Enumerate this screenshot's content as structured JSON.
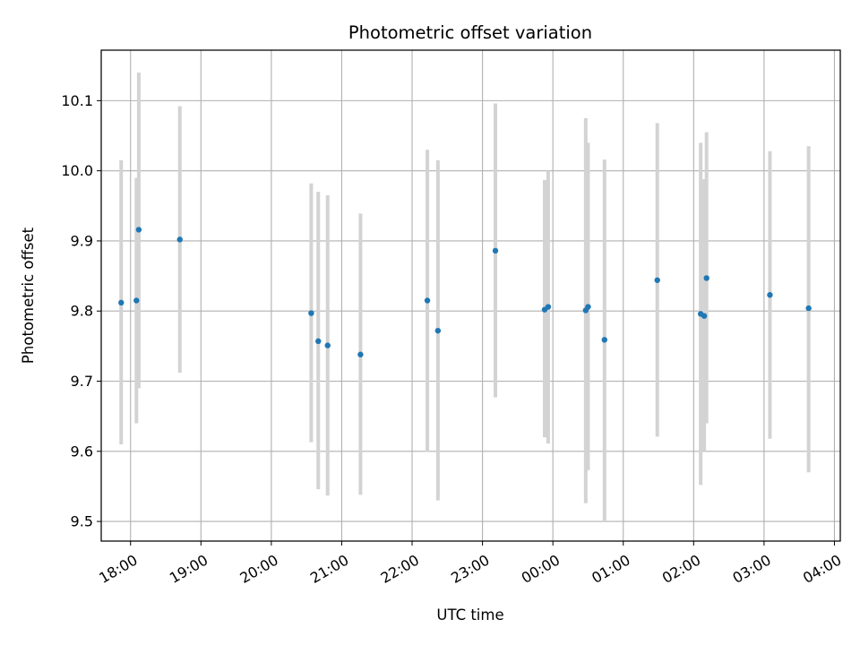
{
  "chart_data": {
    "type": "scatter",
    "title": "Photometric offset variation",
    "xlabel": "UTC time",
    "ylabel": "Photometric offset",
    "grid": true,
    "legend": "none",
    "colors": {
      "point": "#1f77b4",
      "errorbar": "#d3d3d3",
      "grid": "#b0b0b0"
    },
    "xlim": [
      "17:35",
      "04:05"
    ],
    "ylim": [
      9.472,
      10.172
    ],
    "x_ticks": [
      "18:00",
      "19:00",
      "20:00",
      "21:00",
      "22:00",
      "23:00",
      "00:00",
      "01:00",
      "02:00",
      "03:00",
      "04:00"
    ],
    "y_ticks": [
      "9.5",
      "9.6",
      "9.7",
      "9.8",
      "9.9",
      "10.0",
      "10.1"
    ],
    "points": [
      {
        "x": "17:52",
        "y": 9.812,
        "low": 9.61,
        "high": 10.015
      },
      {
        "x": "18:05",
        "y": 9.815,
        "low": 9.64,
        "high": 9.99
      },
      {
        "x": "18:07",
        "y": 9.916,
        "low": 9.69,
        "high": 10.14
      },
      {
        "x": "18:42",
        "y": 9.902,
        "low": 9.712,
        "high": 10.092
      },
      {
        "x": "20:34",
        "y": 9.797,
        "low": 9.613,
        "high": 9.982
      },
      {
        "x": "20:40",
        "y": 9.757,
        "low": 9.546,
        "high": 9.97
      },
      {
        "x": "20:48",
        "y": 9.751,
        "low": 9.537,
        "high": 9.965
      },
      {
        "x": "21:16",
        "y": 9.738,
        "low": 9.538,
        "high": 9.939
      },
      {
        "x": "22:13",
        "y": 9.815,
        "low": 9.599,
        "high": 10.03
      },
      {
        "x": "22:22",
        "y": 9.772,
        "low": 9.53,
        "high": 10.015
      },
      {
        "x": "23:11",
        "y": 9.886,
        "low": 9.677,
        "high": 10.096
      },
      {
        "x": "23:53",
        "y": 9.802,
        "low": 9.62,
        "high": 9.987
      },
      {
        "x": "23:56",
        "y": 9.806,
        "low": 9.611,
        "high": 10.0
      },
      {
        "x": "00:28",
        "y": 9.801,
        "low": 9.526,
        "high": 10.075
      },
      {
        "x": "00:30",
        "y": 9.806,
        "low": 9.573,
        "high": 10.04
      },
      {
        "x": "00:44",
        "y": 9.759,
        "low": 9.5,
        "high": 10.016
      },
      {
        "x": "01:29",
        "y": 9.844,
        "low": 9.621,
        "high": 10.068
      },
      {
        "x": "02:06",
        "y": 9.796,
        "low": 9.552,
        "high": 10.04
      },
      {
        "x": "02:09",
        "y": 9.793,
        "low": 9.6,
        "high": 9.988
      },
      {
        "x": "02:11",
        "y": 9.847,
        "low": 9.64,
        "high": 10.055
      },
      {
        "x": "03:05",
        "y": 9.823,
        "low": 9.618,
        "high": 10.028
      },
      {
        "x": "03:38",
        "y": 9.804,
        "low": 9.57,
        "high": 10.035
      }
    ]
  }
}
